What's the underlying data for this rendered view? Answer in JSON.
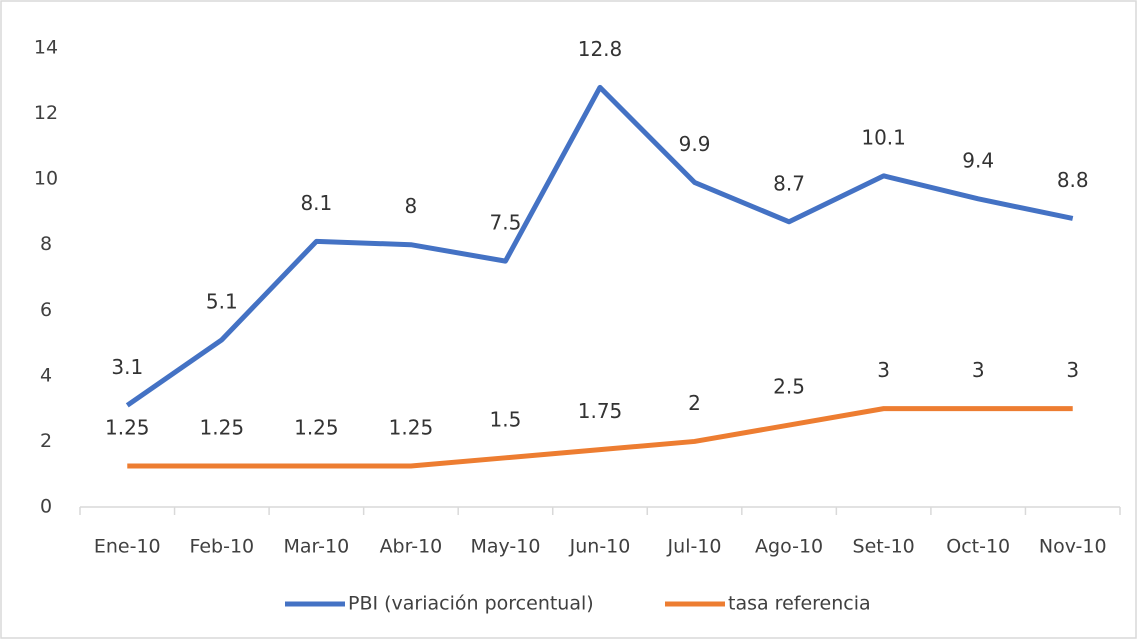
{
  "chart_data": {
    "type": "line",
    "categories": [
      "Ene-10",
      "Feb-10",
      "Mar-10",
      "Abr-10",
      "May-10",
      "Jun-10",
      "Jul-10",
      "Ago-10",
      "Set-10",
      "Oct-10",
      "Nov-10"
    ],
    "series": [
      {
        "name": "PBI (variación porcentual)",
        "color": "#4472c4",
        "values": [
          3.1,
          5.1,
          8.1,
          8,
          7.5,
          12.8,
          9.9,
          8.7,
          10.1,
          9.4,
          8.8
        ]
      },
      {
        "name": "tasa referencia",
        "color": "#ed7d31",
        "values": [
          1.25,
          1.25,
          1.25,
          1.25,
          1.5,
          1.75,
          2,
          2.5,
          3,
          3,
          3
        ]
      }
    ],
    "ylim": [
      0,
      14
    ],
    "yticks": [
      0,
      2,
      4,
      6,
      8,
      10,
      12,
      14
    ],
    "grid": false,
    "legend": "bottom"
  }
}
